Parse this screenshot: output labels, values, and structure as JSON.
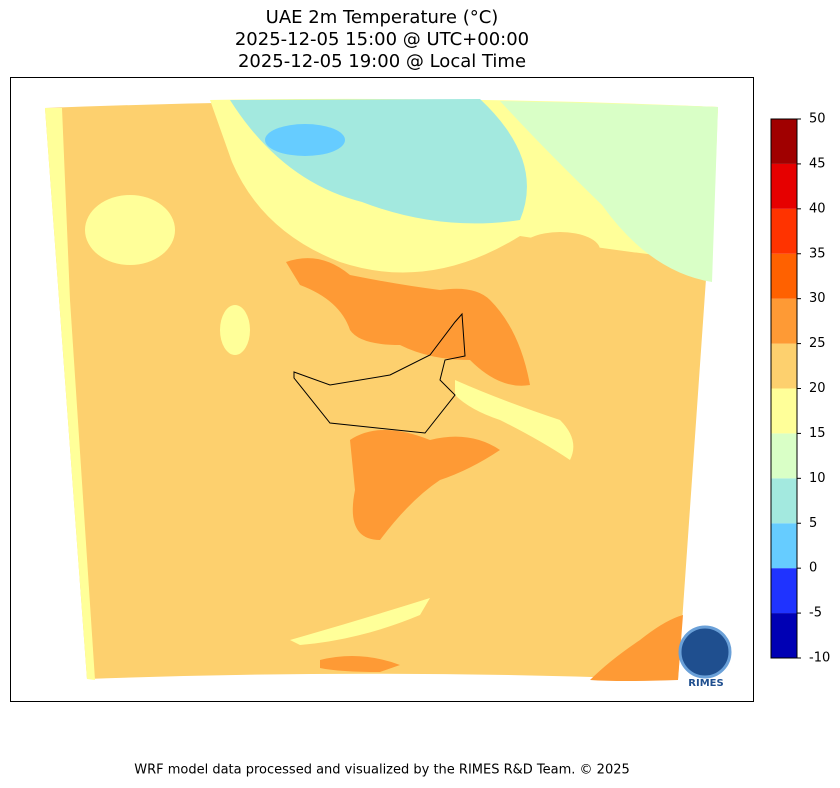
{
  "header": {
    "title_lines": [
      "UAE 2m Temperature (°C)",
      "2025-12-05 15:00 @ UTC+00:00",
      "2025-12-05 19:00 @ Local Time"
    ]
  },
  "colorbar": {
    "ylim": [
      -10,
      50
    ],
    "levels": [
      -10,
      -5,
      0,
      5,
      10,
      15,
      20,
      25,
      30,
      35,
      40,
      45,
      50
    ],
    "colors": [
      "#0000b4",
      "#1f33ff",
      "#66ccff",
      "#a3e9df",
      "#d9ffc6",
      "#ffff99",
      "#fdd06e",
      "#fe9a35",
      "#ff6100",
      "#ff3300",
      "#e60000",
      "#a00000"
    ],
    "yticks": [
      -10,
      -5,
      0,
      5,
      10,
      15,
      20,
      25,
      30,
      35,
      40,
      45,
      50
    ]
  },
  "logo": {
    "label": "RIMES"
  },
  "footer": {
    "text": "WRF model data processed and visualized by the RIMES R&D Team. © 2025"
  }
}
